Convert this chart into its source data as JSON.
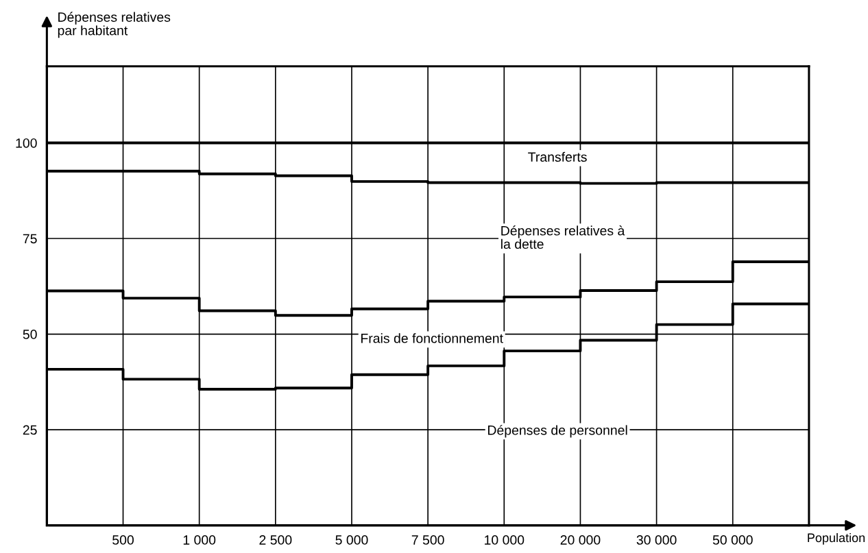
{
  "chart_data": {
    "type": "step",
    "ylabel": "Dépenses relatives\npar habitant",
    "xlabel": "Population",
    "categories": [
      null,
      "500",
      "1 000",
      "2 500",
      "5 000",
      "7 500",
      "10 000",
      "20 000",
      "30 000",
      "50 000",
      null
    ],
    "series": [
      {
        "color": "#000000",
        "values": [
          100,
          100,
          100,
          100,
          100,
          100,
          100,
          100,
          100,
          100,
          100
        ]
      },
      {
        "color": "#000000",
        "values": [
          92.6,
          92.6,
          91.9,
          91.4,
          89.9,
          89.6,
          89.6,
          89.4,
          89.6,
          89.6,
          89.6
        ]
      },
      {
        "color": "#000000",
        "values": [
          61.3,
          59.4,
          56.1,
          54.9,
          56.6,
          58.6,
          59.7,
          61.4,
          63.7,
          68.9,
          68.9
        ]
      },
      {
        "color": "#000000",
        "values": [
          40.8,
          38.2,
          35.6,
          35.9,
          39.4,
          41.7,
          45.6,
          48.4,
          52.5,
          57.9,
          57.9
        ]
      }
    ],
    "ylim": [
      0,
      120
    ],
    "yticks": [
      25,
      50,
      75,
      100
    ],
    "grid": true,
    "annotations": [
      "Transferts",
      "Dépenses relatives à\nla dette",
      "Frais de fonctionnement",
      "Dépenses de personnel"
    ]
  }
}
